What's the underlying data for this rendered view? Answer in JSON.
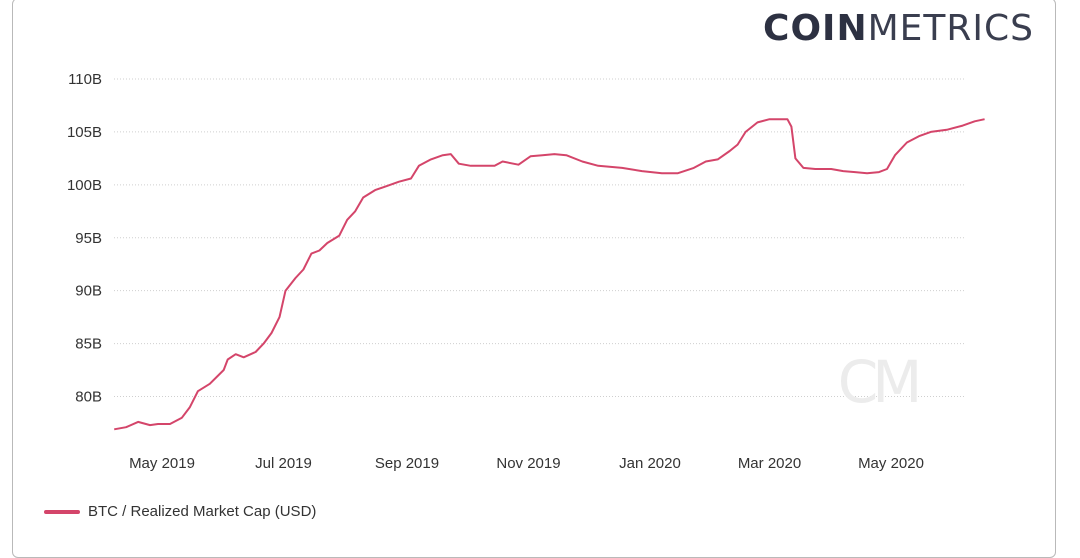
{
  "logo": {
    "bold": "COIN",
    "light": "METRICS"
  },
  "watermark": "CM",
  "chart_data": {
    "type": "line",
    "title": "",
    "xlabel": "",
    "ylabel": "",
    "ylim": [
      77,
      110
    ],
    "xlim": [
      "2019-04-07",
      "2020-06-25"
    ],
    "y_ticks": [
      {
        "value": 80,
        "label": "80B"
      },
      {
        "value": 85,
        "label": "85B"
      },
      {
        "value": 90,
        "label": "90B"
      },
      {
        "value": 95,
        "label": "95B"
      },
      {
        "value": 100,
        "label": "100B"
      },
      {
        "value": 105,
        "label": "105B"
      },
      {
        "value": 110,
        "label": "110B"
      }
    ],
    "x_ticks": [
      {
        "value": "2019-05-01",
        "label": "May 2019"
      },
      {
        "value": "2019-07-01",
        "label": "Jul 2019"
      },
      {
        "value": "2019-09-01",
        "label": "Sep 2019"
      },
      {
        "value": "2019-11-01",
        "label": "Nov 2019"
      },
      {
        "value": "2020-01-01",
        "label": "Jan 2020"
      },
      {
        "value": "2020-03-01",
        "label": "Mar 2020"
      },
      {
        "value": "2020-05-01",
        "label": "May 2020"
      }
    ],
    "grid": true,
    "legend_position": "bottom-left",
    "series": [
      {
        "name": "BTC / Realized Market Cap (USD)",
        "color": "#d4456a",
        "unit": "B",
        "points": [
          [
            "2019-04-07",
            76.9
          ],
          [
            "2019-04-13",
            77.1
          ],
          [
            "2019-04-19",
            77.6
          ],
          [
            "2019-04-25",
            77.3
          ],
          [
            "2019-04-29",
            77.4
          ],
          [
            "2019-05-05",
            77.4
          ],
          [
            "2019-05-11",
            78.0
          ],
          [
            "2019-05-15",
            79.0
          ],
          [
            "2019-05-19",
            80.5
          ],
          [
            "2019-05-25",
            81.2
          ],
          [
            "2019-06-01",
            82.5
          ],
          [
            "2019-06-03",
            83.5
          ],
          [
            "2019-06-07",
            84.0
          ],
          [
            "2019-06-11",
            83.7
          ],
          [
            "2019-06-17",
            84.2
          ],
          [
            "2019-06-21",
            85.0
          ],
          [
            "2019-06-25",
            86.0
          ],
          [
            "2019-06-29",
            87.5
          ],
          [
            "2019-07-02",
            90.0
          ],
          [
            "2019-07-07",
            91.2
          ],
          [
            "2019-07-11",
            92.0
          ],
          [
            "2019-07-15",
            93.5
          ],
          [
            "2019-07-19",
            93.8
          ],
          [
            "2019-07-23",
            94.5
          ],
          [
            "2019-07-29",
            95.2
          ],
          [
            "2019-08-02",
            96.7
          ],
          [
            "2019-08-06",
            97.5
          ],
          [
            "2019-08-10",
            98.8
          ],
          [
            "2019-08-16",
            99.5
          ],
          [
            "2019-08-22",
            99.9
          ],
          [
            "2019-08-28",
            100.3
          ],
          [
            "2019-09-03",
            100.6
          ],
          [
            "2019-09-07",
            101.8
          ],
          [
            "2019-09-13",
            102.4
          ],
          [
            "2019-09-19",
            102.8
          ],
          [
            "2019-09-23",
            102.9
          ],
          [
            "2019-09-27",
            102.0
          ],
          [
            "2019-10-03",
            101.8
          ],
          [
            "2019-10-09",
            101.8
          ],
          [
            "2019-10-15",
            101.8
          ],
          [
            "2019-10-19",
            102.2
          ],
          [
            "2019-10-27",
            101.9
          ],
          [
            "2019-11-02",
            102.7
          ],
          [
            "2019-11-08",
            102.8
          ],
          [
            "2019-11-14",
            102.9
          ],
          [
            "2019-11-20",
            102.8
          ],
          [
            "2019-11-28",
            102.2
          ],
          [
            "2019-12-06",
            101.8
          ],
          [
            "2019-12-18",
            101.6
          ],
          [
            "2019-12-28",
            101.3
          ],
          [
            "2020-01-07",
            101.1
          ],
          [
            "2020-01-15",
            101.1
          ],
          [
            "2020-01-23",
            101.6
          ],
          [
            "2020-01-29",
            102.2
          ],
          [
            "2020-02-04",
            102.4
          ],
          [
            "2020-02-10",
            103.2
          ],
          [
            "2020-02-14",
            103.8
          ],
          [
            "2020-02-18",
            105.0
          ],
          [
            "2020-02-24",
            105.9
          ],
          [
            "2020-03-01",
            106.2
          ],
          [
            "2020-03-06",
            106.2
          ],
          [
            "2020-03-10",
            106.2
          ],
          [
            "2020-03-12",
            105.5
          ],
          [
            "2020-03-14",
            102.5
          ],
          [
            "2020-03-18",
            101.6
          ],
          [
            "2020-03-24",
            101.5
          ],
          [
            "2020-04-01",
            101.5
          ],
          [
            "2020-04-07",
            101.3
          ],
          [
            "2020-04-13",
            101.2
          ],
          [
            "2020-04-19",
            101.1
          ],
          [
            "2020-04-25",
            101.2
          ],
          [
            "2020-04-29",
            101.5
          ],
          [
            "2020-05-03",
            102.8
          ],
          [
            "2020-05-09",
            104.0
          ],
          [
            "2020-05-15",
            104.6
          ],
          [
            "2020-05-21",
            105.0
          ],
          [
            "2020-05-29",
            105.2
          ],
          [
            "2020-06-06",
            105.6
          ],
          [
            "2020-06-12",
            106.0
          ],
          [
            "2020-06-17",
            106.2
          ]
        ]
      }
    ]
  }
}
